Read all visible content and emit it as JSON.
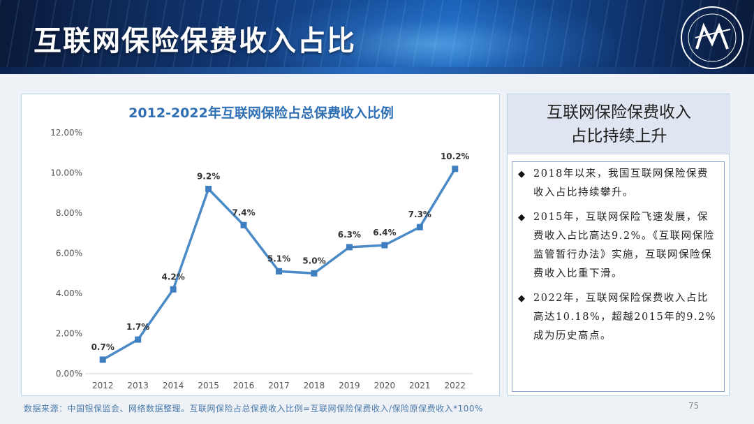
{
  "header": {
    "title": "互联网保险保费收入占比"
  },
  "chart_data": {
    "type": "line",
    "title": "2012-2022年互联网保险占总保费收入比例",
    "xlabel": "",
    "ylabel": "",
    "categories": [
      "2012",
      "2013",
      "2014",
      "2015",
      "2016",
      "2017",
      "2018",
      "2019",
      "2020",
      "2021",
      "2022"
    ],
    "values": [
      0.7,
      1.7,
      4.2,
      9.2,
      7.4,
      5.1,
      5.0,
      6.3,
      6.4,
      7.3,
      10.2
    ],
    "data_labels": [
      "0.7%",
      "1.7%",
      "4.2%",
      "9.2%",
      "7.4%",
      "5.1%",
      "5.0%",
      "6.3%",
      "6.4%",
      "7.3%",
      "10.2%"
    ],
    "ylim": [
      0,
      12
    ],
    "y_ticks": [
      "0.00%",
      "2.00%",
      "4.00%",
      "6.00%",
      "8.00%",
      "10.00%",
      "12.00%"
    ],
    "grid": false,
    "line_color": "#4a8ac6",
    "marker_color": "#3f7fc0",
    "title_color": "#2f6fb3"
  },
  "side": {
    "heading_line1": "互联网保险保费收入",
    "heading_line2": "占比持续上升",
    "bullets": [
      "2018年以来，我国互联网保险保费收入占比持续攀升。",
      "2015年，互联网保险飞速发展，保费收入占比高达9.2%。《互联网保险监管暂行办法》实施，互联网保险保费收入比重下滑。",
      "2022年，互联网保险保费收入占比高达10.18%，超越2015年的9.2%成为历史高点。"
    ],
    "bullet_icon": "diamond-bullet-icon"
  },
  "footer": {
    "source": "数据来源：中国银保监会、网络数据整理。互联网保险占总保费收入比例=互联网保险保费收入/保险原保费收入*100%",
    "page_number": "75"
  },
  "colors": {
    "accent": "#2f6fb3",
    "header_dark": "#0a1a3a",
    "panel_border": "#b9d4e6"
  }
}
